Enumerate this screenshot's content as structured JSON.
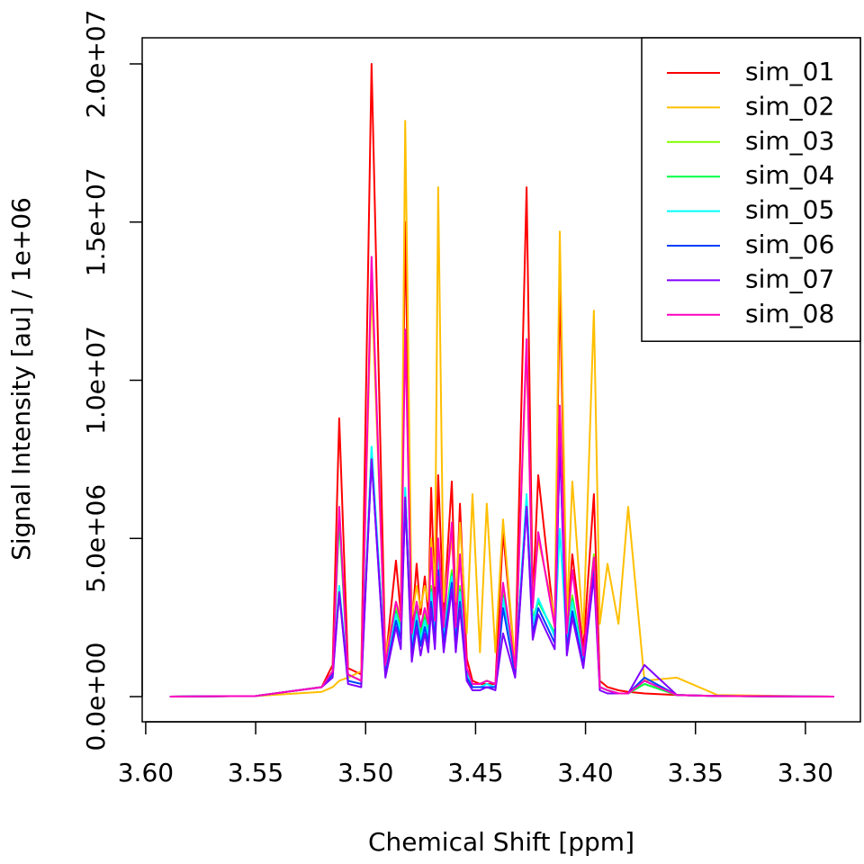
{
  "chart_data": {
    "type": "line",
    "xlabel": "Chemical Shift [ppm]",
    "ylabel": "Signal Intensity [au] / 1e+06",
    "xlim": [
      3.6016,
      3.275
    ],
    "ylim": [
      -796000,
      20825000
    ],
    "xticks": [
      {
        "value": 3.6,
        "label": "3.60"
      },
      3.55,
      {
        "value": 3.5,
        "label": "3.50"
      },
      3.45,
      {
        "value": 3.4,
        "label": "3.40"
      },
      3.35,
      {
        "value": 3.3,
        "label": "3.30"
      }
    ],
    "yticks": [
      {
        "value": 0,
        "label": "0.0e+00"
      },
      {
        "value": 5000000,
        "label": "5.0e+06"
      },
      {
        "value": 10000000,
        "label": "1.0e+07"
      },
      {
        "value": 15000000,
        "label": "1.5e+07"
      },
      {
        "value": 20000000,
        "label": "2.0e+07"
      }
    ],
    "legend": "top-right",
    "x": [
      3.589,
      3.55,
      3.52,
      3.515,
      3.512,
      3.508,
      3.502,
      3.4973,
      3.491,
      3.4862,
      3.484,
      3.482,
      3.479,
      3.4768,
      3.475,
      3.4731,
      3.4715,
      3.4702,
      3.4685,
      3.467,
      3.4645,
      3.4608,
      3.459,
      3.4571,
      3.454,
      3.4514,
      3.448,
      3.4449,
      3.441,
      3.4375,
      3.432,
      3.4268,
      3.424,
      3.4215,
      3.414,
      3.4117,
      3.4085,
      3.406,
      3.401,
      3.3962,
      3.3935,
      3.39,
      3.385,
      3.3806,
      3.3732,
      3.3585,
      3.34,
      3.287
    ],
    "series": [
      {
        "name": "sim_01",
        "color": "#FF0000",
        "values": [
          0,
          20000.0,
          300000.0,
          1000000.0,
          8800000.0,
          900000.0,
          700000.0,
          20000000.0,
          1100000.0,
          4300000.0,
          2600000.0,
          15000000.0,
          2200000.0,
          4200000.0,
          2600000.0,
          3800000.0,
          2600000.0,
          6600000.0,
          3000000.0,
          7000000.0,
          2600000.0,
          6800000.0,
          2600000.0,
          6100000.0,
          1200000.0,
          500000.0,
          400000.0,
          400000.0,
          400000.0,
          5200000.0,
          1000000.0,
          16100000.0,
          3000000.0,
          7000000.0,
          2200000.0,
          13100000.0,
          2200000.0,
          4500000.0,
          1500000.0,
          6400000.0,
          500000.0,
          300000.0,
          200000.0,
          150000.0,
          100000.0,
          50000.0,
          20000.0,
          0
        ]
      },
      {
        "name": "sim_02",
        "color": "#FFBF00",
        "values": [
          0,
          20000.0,
          150000.0,
          300000.0,
          500000.0,
          600000.0,
          800000.0,
          13000000.0,
          1300000.0,
          3000000.0,
          2500000.0,
          18200000.0,
          2500000.0,
          3500000.0,
          2800000.0,
          3500000.0,
          3000000.0,
          5000000.0,
          3500000.0,
          16100000.0,
          3000000.0,
          5000000.0,
          3000000.0,
          5500000.0,
          2000000.0,
          6400000.0,
          1400000.0,
          6100000.0,
          1400000.0,
          5600000.0,
          1000000.0,
          11000000.0,
          3000000.0,
          5000000.0,
          2500000.0,
          14700000.0,
          2500000.0,
          6800000.0,
          2000000.0,
          12200000.0,
          2300000.0,
          4200000.0,
          2300000.0,
          6000000.0,
          500000.0,
          600000.0,
          50000.0,
          0
        ]
      },
      {
        "name": "sim_03",
        "color": "#80FF00",
        "values": [
          0,
          20000.0,
          300000.0,
          800000.0,
          5800000.0,
          700000.0,
          500000.0,
          7800000.0,
          900000.0,
          2800000.0,
          2200000.0,
          6500000.0,
          1800000.0,
          2800000.0,
          2000000.0,
          2600000.0,
          2100000.0,
          3500000.0,
          2200000.0,
          4500000.0,
          2000000.0,
          4000000.0,
          2000000.0,
          3500000.0,
          800000.0,
          400000.0,
          400000.0,
          500000.0,
          400000.0,
          3300000.0,
          900000.0,
          6200000.0,
          2500000.0,
          3000000.0,
          2000000.0,
          8700000.0,
          1800000.0,
          3200000.0,
          1200000.0,
          4500000.0,
          300000.0,
          200000.0,
          100000.0,
          100000.0,
          400000.0,
          50000.0,
          20000.0,
          0
        ]
      },
      {
        "name": "sim_04",
        "color": "#00FF40",
        "values": [
          0,
          20000.0,
          300000.0,
          800000.0,
          5600000.0,
          700000.0,
          500000.0,
          7600000.0,
          900000.0,
          2700000.0,
          2100000.0,
          6400000.0,
          1800000.0,
          2700000.0,
          2000000.0,
          2500000.0,
          2000000.0,
          3400000.0,
          2100000.0,
          4400000.0,
          2000000.0,
          3900000.0,
          2000000.0,
          3400000.0,
          800000.0,
          400000.0,
          400000.0,
          500000.0,
          400000.0,
          3200000.0,
          900000.0,
          6100000.0,
          2400000.0,
          3000000.0,
          2000000.0,
          8500000.0,
          1800000.0,
          3100000.0,
          1200000.0,
          4400000.0,
          300000.0,
          200000.0,
          100000.0,
          100000.0,
          400000.0,
          50000.0,
          20000.0,
          0
        ]
      },
      {
        "name": "sim_05",
        "color": "#00FFFF",
        "values": [
          0,
          20000.0,
          300000.0,
          700000.0,
          3500000.0,
          500000.0,
          400000.0,
          7900000.0,
          800000.0,
          2600000.0,
          2000000.0,
          6600000.0,
          1600000.0,
          2600000.0,
          1800000.0,
          2400000.0,
          1900000.0,
          3300000.0,
          2000000.0,
          4300000.0,
          1900000.0,
          3800000.0,
          1900000.0,
          3300000.0,
          700000.0,
          300000.0,
          300000.0,
          400000.0,
          300000.0,
          3100000.0,
          800000.0,
          6400000.0,
          2300000.0,
          3100000.0,
          1900000.0,
          5300000.0,
          1700000.0,
          3000000.0,
          1100000.0,
          4200000.0,
          300000.0,
          200000.0,
          100000.0,
          100000.0,
          500000.0,
          50000.0,
          20000.0,
          0
        ]
      },
      {
        "name": "sim_06",
        "color": "#0040FF",
        "values": [
          0,
          20000.0,
          300000.0,
          700000.0,
          3300000.0,
          500000.0,
          400000.0,
          7500000.0,
          700000.0,
          2400000.0,
          1800000.0,
          6200000.0,
          1400000.0,
          2400000.0,
          1600000.0,
          2200000.0,
          1700000.0,
          3000000.0,
          1800000.0,
          4000000.0,
          1700000.0,
          3600000.0,
          1700000.0,
          3000000.0,
          600000.0,
          300000.0,
          300000.0,
          300000.0,
          300000.0,
          2800000.0,
          700000.0,
          6000000.0,
          2000000.0,
          2800000.0,
          1700000.0,
          8000000.0,
          1500000.0,
          2700000.0,
          1000000.0,
          4000000.0,
          300000.0,
          200000.0,
          100000.0,
          100000.0,
          600000.0,
          50000.0,
          20000.0,
          0
        ]
      },
      {
        "name": "sim_07",
        "color": "#8000FF",
        "values": [
          0,
          20000.0,
          300000.0,
          600000.0,
          3300000.0,
          400000.0,
          300000.0,
          7500000.0,
          600000.0,
          2200000.0,
          1500000.0,
          6300000.0,
          1100000.0,
          2200000.0,
          1300000.0,
          2000000.0,
          1400000.0,
          2800000.0,
          1500000.0,
          3800000.0,
          1400000.0,
          3400000.0,
          1400000.0,
          2800000.0,
          500000.0,
          200000.0,
          200000.0,
          300000.0,
          200000.0,
          2000000.0,
          600000.0,
          6000000.0,
          1800000.0,
          2600000.0,
          1500000.0,
          8000000.0,
          1300000.0,
          2500000.0,
          900000.0,
          3800000.0,
          200000.0,
          100000.0,
          100000.0,
          100000.0,
          1000000.0,
          50000.0,
          20000.0,
          0
        ]
      },
      {
        "name": "sim_08",
        "color": "#FF00BF",
        "values": [
          0,
          20000.0,
          300000.0,
          800000.0,
          6000000.0,
          700000.0,
          500000.0,
          13900000.0,
          1000000.0,
          3000000.0,
          2400000.0,
          11600000.0,
          2000000.0,
          3000000.0,
          2200000.0,
          2800000.0,
          2300000.0,
          4700000.0,
          2400000.0,
          5000000.0,
          2200000.0,
          5500000.0,
          2200000.0,
          4500000.0,
          900000.0,
          400000.0,
          400000.0,
          500000.0,
          400000.0,
          3600000.0,
          900000.0,
          11300000.0,
          2800000.0,
          5200000.0,
          2200000.0,
          9200000.0,
          2000000.0,
          4000000.0,
          1300000.0,
          4400000.0,
          300000.0,
          200000.0,
          100000.0,
          100000.0,
          500000.0,
          50000.0,
          20000.0,
          0
        ]
      }
    ]
  }
}
